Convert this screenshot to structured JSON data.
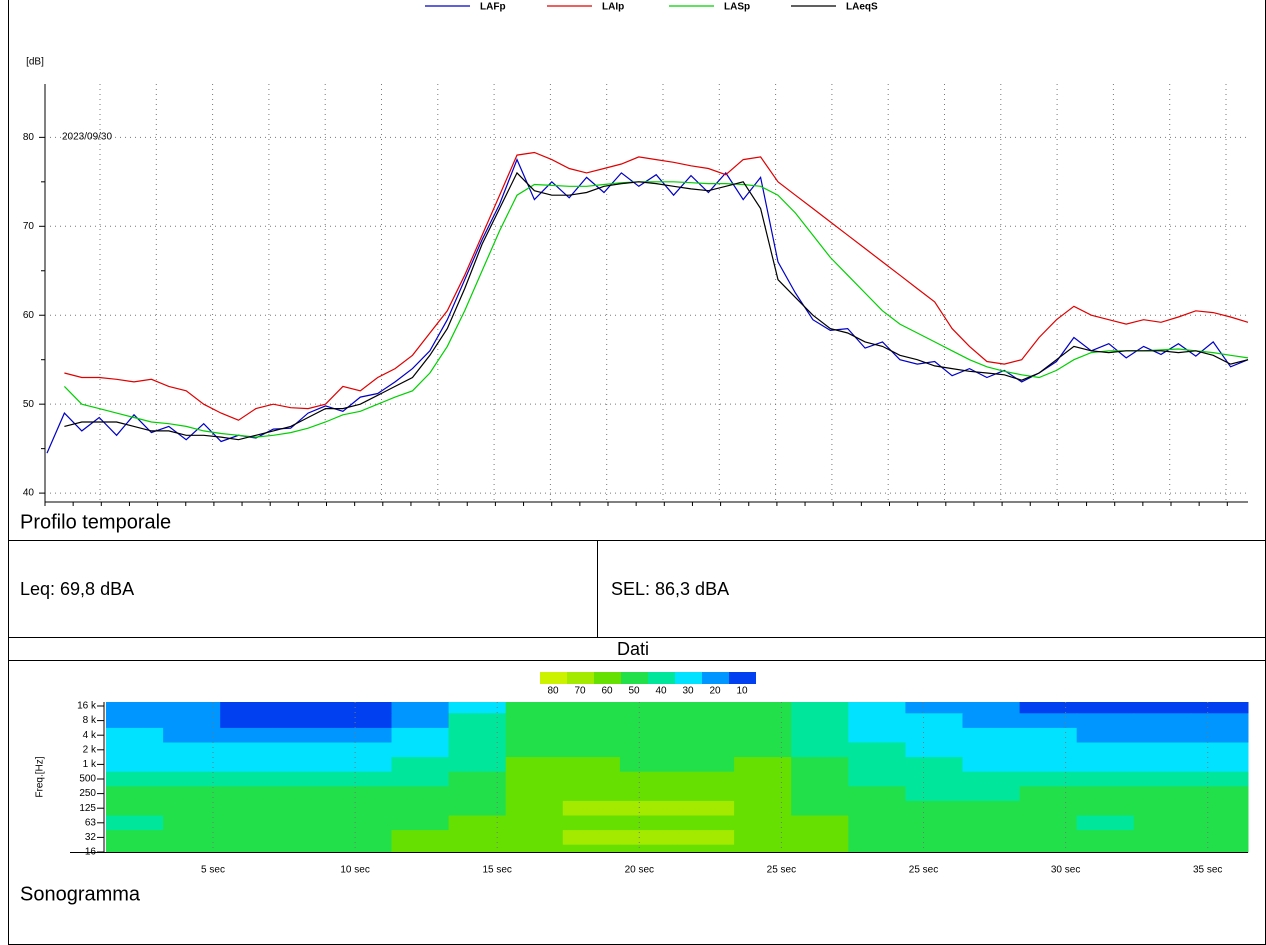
{
  "chart_data": [
    {
      "type": "line",
      "title": "Profilo temporale",
      "ylabel": "[dB]",
      "annotation": "2023/09/30",
      "ylim": [
        39,
        86
      ],
      "yticks": [
        40,
        50,
        60,
        70,
        80
      ],
      "grid": true,
      "legend": "top",
      "series": [
        {
          "name": "LAFp",
          "color": "#0000c8",
          "values": [
            44.5,
            49,
            47,
            48.5,
            46.5,
            48.8,
            46.8,
            47.5,
            46,
            47.8,
            45.8,
            46.5,
            46.2,
            47.2,
            47.3,
            49,
            49.8,
            49.2,
            50.8,
            51.2,
            52.5,
            54,
            56,
            59.5,
            64,
            68.5,
            72.5,
            77.5,
            73,
            75,
            73.2,
            75.5,
            73.8,
            76,
            74.5,
            75.8,
            73.5,
            75.7,
            73.8,
            76,
            73,
            75.5,
            66,
            62.5,
            59.5,
            58.3,
            58.5,
            56.3,
            57,
            55,
            54.5,
            54.8,
            53.2,
            54,
            53,
            53.8,
            52.5,
            53.5,
            54.8,
            57.5,
            56,
            56.8,
            55.2,
            56.5,
            55.6,
            56.8,
            55.4,
            57,
            54.2,
            55
          ]
        },
        {
          "name": "LAIp",
          "color": "#e00000",
          "values": [
            null,
            53.5,
            53,
            53,
            52.8,
            52.5,
            52.8,
            52,
            51.5,
            50,
            49,
            48.2,
            49.5,
            50,
            49.6,
            49.5,
            50,
            52,
            51.5,
            53,
            54,
            55.5,
            58,
            60.5,
            64.5,
            69,
            73.5,
            78,
            78.3,
            77.5,
            76.5,
            76,
            76.5,
            77,
            77.8,
            77.5,
            77.2,
            76.8,
            76.5,
            75.8,
            77.5,
            77.8,
            75,
            73.5,
            72,
            70.5,
            69,
            67.5,
            66,
            64.5,
            63,
            61.5,
            58.5,
            56.5,
            54.8,
            54.5,
            55,
            57.5,
            59.5,
            61,
            60,
            59.5,
            59,
            59.5,
            59.2,
            59.8,
            60.5,
            60.3,
            59.8,
            59.2
          ]
        },
        {
          "name": "LASp",
          "color": "#00d000",
          "values": [
            null,
            52,
            50,
            49.5,
            49,
            48.5,
            48,
            47.8,
            47.5,
            47,
            46.7,
            46.5,
            46.3,
            46.5,
            46.8,
            47.3,
            48,
            48.8,
            49.2,
            50,
            50.8,
            51.5,
            53.5,
            56.5,
            60.5,
            65,
            69.5,
            73.5,
            74.7,
            74.6,
            74.5,
            74.5,
            74.7,
            74.9,
            75,
            75,
            75,
            74.9,
            74.8,
            74.8,
            74.7,
            74.5,
            73.5,
            71.5,
            69,
            66.5,
            64.5,
            62.5,
            60.5,
            59,
            58,
            57,
            56,
            55,
            54.2,
            53.7,
            53.3,
            53,
            53.8,
            55,
            55.8,
            56,
            56,
            56,
            56.1,
            56.2,
            56,
            55.8,
            55.5,
            55.2
          ]
        },
        {
          "name": "LAeqS",
          "color": "#000000",
          "values": [
            null,
            47.5,
            48,
            48,
            48,
            47.5,
            47,
            47,
            46.5,
            46.5,
            46.3,
            46,
            46.5,
            47,
            47.5,
            48.5,
            49.5,
            49.5,
            50,
            51,
            52,
            53,
            55.5,
            58.5,
            63,
            68,
            72,
            76,
            74,
            73.5,
            73.5,
            73.8,
            74.5,
            74.8,
            75,
            74.8,
            74.5,
            74.2,
            74,
            74.5,
            75,
            72,
            64,
            62,
            60,
            58.5,
            58,
            57,
            56.5,
            55.5,
            55,
            54.3,
            54,
            53.7,
            53.5,
            53.3,
            52.7,
            53.5,
            55,
            56.5,
            56,
            55.8,
            56,
            56,
            56,
            55.8,
            56,
            55.5,
            54.5,
            55
          ]
        }
      ]
    },
    {
      "type": "heatmap",
      "title": "Sonogramma",
      "ylabel": "Freq.[Hz]",
      "y_categories": [
        "16 k",
        "8 k",
        "4 k",
        "2 k",
        "1 k",
        "500",
        "250",
        "125",
        "63",
        "32",
        "16"
      ],
      "x_labels": [
        "5 sec",
        "10 sec",
        "15 sec",
        "20 sec",
        "25 sec",
        "25 sec",
        "30 sec",
        "35 sec"
      ],
      "colorbar": {
        "levels": [
          80,
          70,
          60,
          50,
          40,
          30,
          20,
          10
        ],
        "colors": [
          "#ccf200",
          "#a4ea00",
          "#66e000",
          "#22e04a",
          "#00e69a",
          "#00e2ff",
          "#0096ff",
          "#0040f0"
        ]
      },
      "z": [
        [
          20,
          20,
          15,
          10,
          10,
          20,
          30,
          50,
          50,
          50,
          50,
          50,
          40,
          30,
          25,
          20,
          15,
          15,
          15,
          15
        ],
        [
          20,
          20,
          10,
          10,
          10,
          20,
          40,
          50,
          50,
          50,
          50,
          50,
          40,
          30,
          30,
          20,
          20,
          20,
          20,
          20
        ],
        [
          30,
          25,
          20,
          20,
          20,
          30,
          40,
          55,
          55,
          55,
          55,
          55,
          45,
          30,
          30,
          30,
          30,
          25,
          25,
          25
        ],
        [
          30,
          30,
          30,
          30,
          30,
          35,
          45,
          55,
          55,
          55,
          55,
          55,
          45,
          40,
          35,
          30,
          30,
          30,
          30,
          30
        ],
        [
          30,
          30,
          30,
          35,
          35,
          40,
          45,
          60,
          60,
          55,
          55,
          60,
          50,
          40,
          40,
          35,
          35,
          30,
          30,
          30
        ],
        [
          40,
          40,
          40,
          40,
          40,
          45,
          50,
          60,
          60,
          60,
          60,
          60,
          55,
          45,
          40,
          40,
          40,
          40,
          40,
          40
        ],
        [
          50,
          50,
          50,
          50,
          50,
          50,
          55,
          60,
          65,
          65,
          65,
          60,
          55,
          50,
          45,
          45,
          50,
          50,
          50,
          50
        ],
        [
          50,
          50,
          50,
          50,
          50,
          50,
          55,
          65,
          70,
          70,
          70,
          65,
          55,
          50,
          50,
          50,
          50,
          50,
          50,
          50
        ],
        [
          40,
          50,
          50,
          50,
          50,
          55,
          60,
          65,
          65,
          65,
          65,
          65,
          60,
          55,
          50,
          50,
          50,
          45,
          50,
          50
        ],
        [
          50,
          50,
          50,
          50,
          55,
          60,
          60,
          65,
          70,
          70,
          70,
          65,
          60,
          55,
          55,
          55,
          55,
          55,
          50,
          50
        ],
        [
          50,
          50,
          50,
          50,
          55,
          60,
          60,
          65,
          65,
          65,
          65,
          65,
          60,
          55,
          55,
          55,
          55,
          55,
          55,
          55
        ]
      ]
    }
  ],
  "report": {
    "leq": "Leq: 69,8 dBA",
    "sel": "SEL: 86,3 dBA",
    "data_header": "Dati"
  }
}
